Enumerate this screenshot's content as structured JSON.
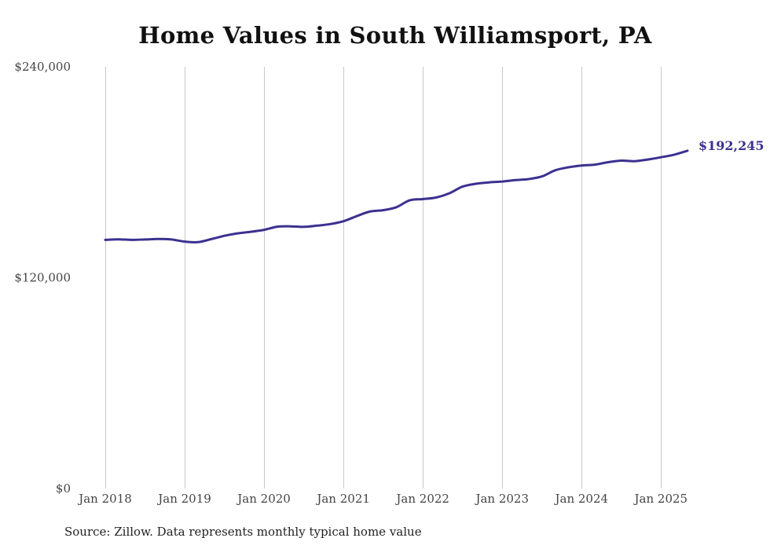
{
  "chart_data": {
    "type": "line",
    "title": "Home Values in South Williamsport, PA",
    "source_note": "Source: Zillow. Data represents monthly typical home value",
    "y_tick_labels": [
      "$240,000",
      "$120,000",
      "$0"
    ],
    "y_ticks": [
      240000,
      120000,
      0
    ],
    "ylim": [
      0,
      240000
    ],
    "x_tick_labels": [
      "Jan 2018",
      "Jan 2019",
      "Jan 2020",
      "Jan 2021",
      "Jan 2022",
      "Jan 2023",
      "Jan 2024",
      "Jan 2025"
    ],
    "x_ticks": [
      "2018-01",
      "2019-01",
      "2020-01",
      "2021-01",
      "2022-01",
      "2023-01",
      "2024-01",
      "2025-01"
    ],
    "xlim": [
      "2018-01",
      "2025-05"
    ],
    "grid": "vertical",
    "line_color": "#3b3190",
    "end_label": "$192,245",
    "series": [
      {
        "x": [
          "2018-01",
          "2018-03",
          "2018-05",
          "2018-07",
          "2018-09",
          "2018-11",
          "2019-01",
          "2019-03",
          "2019-05",
          "2019-07",
          "2019-09",
          "2019-11",
          "2020-01",
          "2020-03",
          "2020-05",
          "2020-07",
          "2020-09",
          "2020-11",
          "2021-01",
          "2021-03",
          "2021-05",
          "2021-07",
          "2021-09",
          "2021-11",
          "2022-01",
          "2022-03",
          "2022-05",
          "2022-07",
          "2022-09",
          "2022-11",
          "2023-01",
          "2023-03",
          "2023-05",
          "2023-07",
          "2023-09",
          "2023-11",
          "2024-01",
          "2024-03",
          "2024-05",
          "2024-07",
          "2024-09",
          "2024-11",
          "2025-01",
          "2025-03",
          "2025-05"
        ],
        "values": [
          141500,
          141800,
          141500,
          141700,
          142000,
          141700,
          140500,
          140200,
          141900,
          143800,
          145200,
          146100,
          147200,
          149000,
          149200,
          148900,
          149600,
          150500,
          152100,
          155000,
          157600,
          158400,
          160100,
          164000,
          164700,
          165600,
          168000,
          171800,
          173400,
          174200,
          174700,
          175500,
          176100,
          177600,
          181100,
          182800,
          183800,
          184300,
          185700,
          186600,
          186300,
          187200,
          188500,
          190000,
          192245
        ]
      }
    ]
  }
}
